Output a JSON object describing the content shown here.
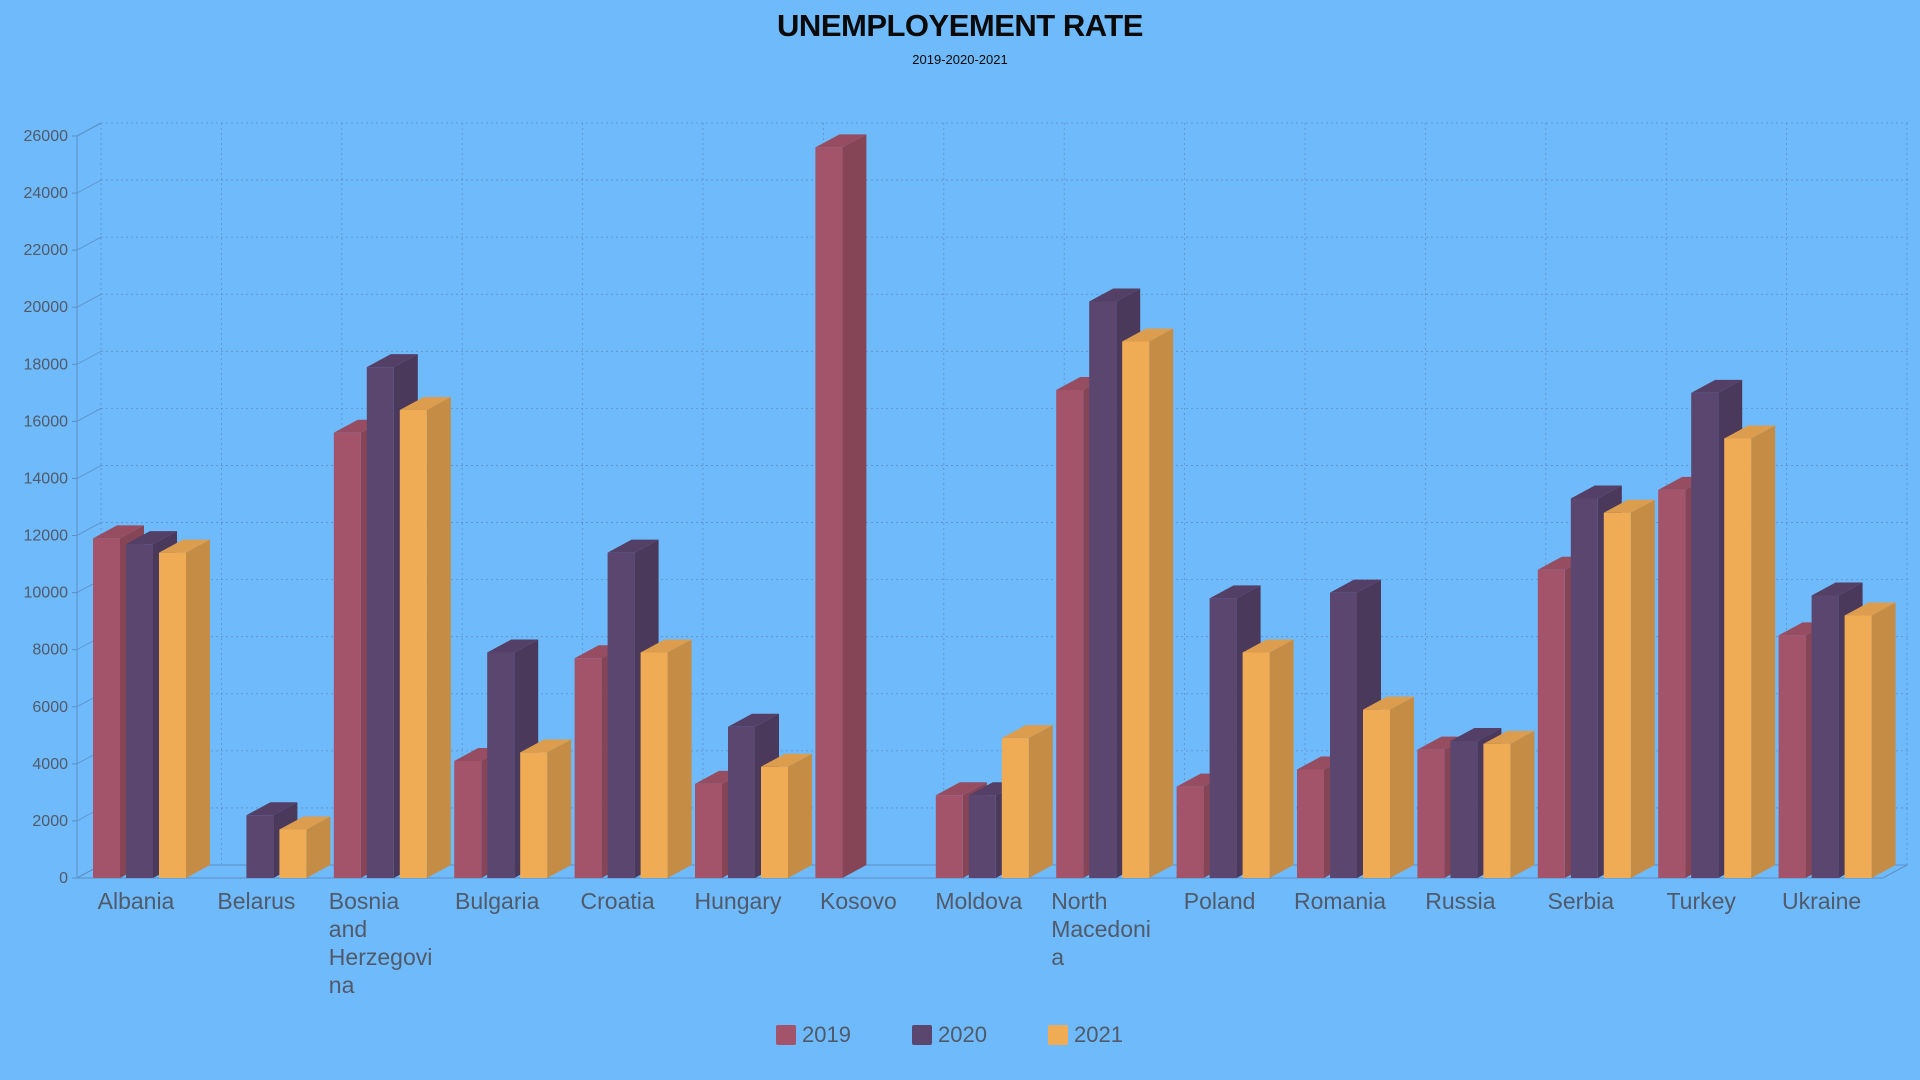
{
  "chart_data": {
    "type": "bar",
    "title": "UNEMPLOYEMENT RATE",
    "subtitle": "2019-2020-2021",
    "xlabel": "",
    "ylabel": "",
    "ylim": [
      0,
      26000
    ],
    "y_ticks": [
      "0",
      "2000",
      "4000",
      "6000",
      "8000",
      "10000",
      "12000",
      "14000",
      "16000",
      "18000",
      "20000",
      "22000",
      "24000",
      "26000"
    ],
    "grid": true,
    "legend_position": "bottom",
    "style": "3d",
    "categories": [
      "Albania",
      "Belarus",
      "Bosnia and Herzegovina",
      "Bulgaria",
      "Croatia",
      "Hungary",
      "Kosovo",
      "Moldova",
      "North Macedonia",
      "Poland",
      "Romania",
      "Russia",
      "Serbia",
      "Turkey",
      "Ukraine"
    ],
    "category_label_lines": [
      [
        "Albania"
      ],
      [
        "Belarus"
      ],
      [
        "Bosnia",
        "and",
        "Herzegovi",
        "na"
      ],
      [
        "Bulgaria"
      ],
      [
        "Croatia"
      ],
      [
        "Hungary"
      ],
      [
        "Kosovo"
      ],
      [
        "Moldova"
      ],
      [
        "North",
        "Macedoni",
        "a"
      ],
      [
        "Poland"
      ],
      [
        "Romania"
      ],
      [
        "Russia"
      ],
      [
        "Serbia"
      ],
      [
        "Turkey"
      ],
      [
        "Ukraine"
      ]
    ],
    "series": [
      {
        "name": "2019",
        "color": "#a3546a",
        "values": [
          11900,
          0,
          15600,
          4100,
          7700,
          3300,
          25600,
          2900,
          17100,
          3200,
          3800,
          4500,
          10800,
          13600,
          8500
        ]
      },
      {
        "name": "2020",
        "color": "#5b466f",
        "values": [
          11700,
          2200,
          17900,
          7900,
          11400,
          5300,
          0,
          2900,
          20200,
          9800,
          10000,
          4800,
          13300,
          17000,
          9900
        ]
      },
      {
        "name": "2021",
        "color": "#f0ab55",
        "values": [
          11400,
          1700,
          16400,
          4400,
          7900,
          3900,
          0,
          4900,
          18800,
          7900,
          5900,
          4700,
          12800,
          15400,
          9200
        ]
      }
    ]
  }
}
